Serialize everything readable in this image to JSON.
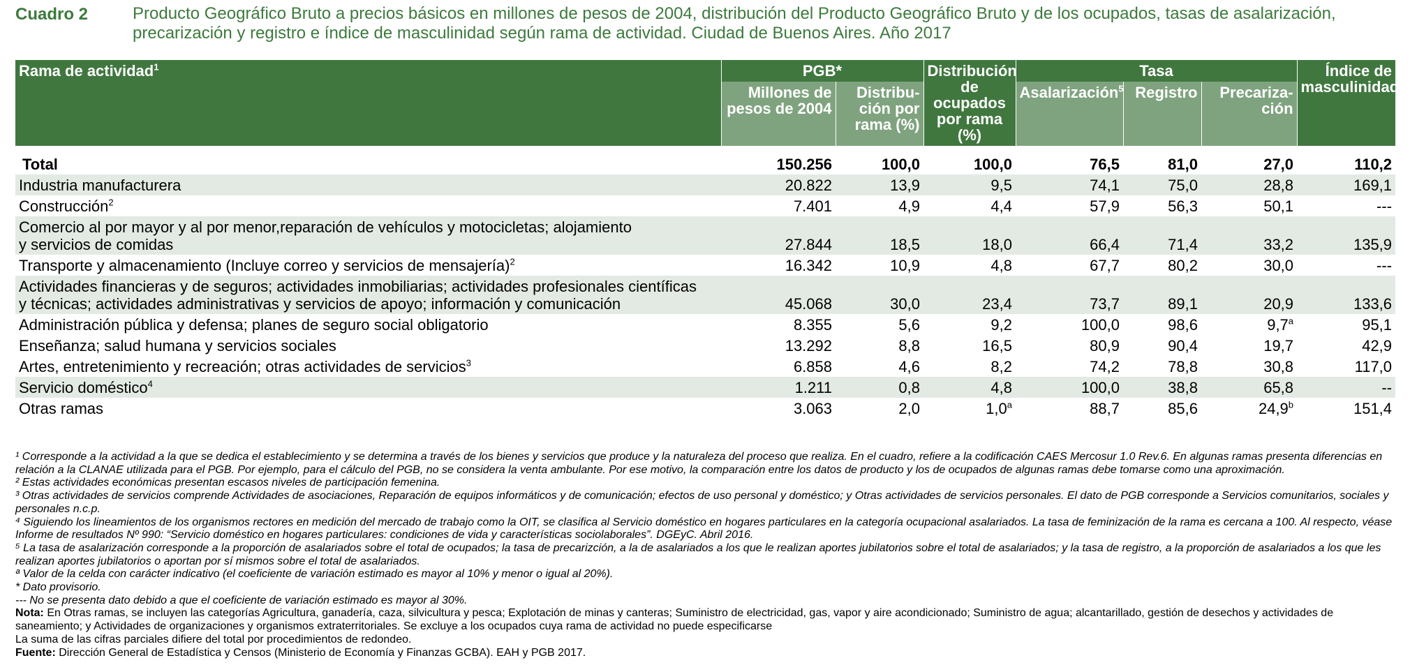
{
  "caption": {
    "label": "Cuadro 2",
    "title": "Producto Geográfico Bruto a precios básicos en millones de pesos de 2004, distribución del Producto Geográfico Bruto y de los ocupados, tasas de asalarización, precarización y registro e índice de masculinidad según rama de actividad. Ciudad de Buenos Aires. Año 2017"
  },
  "header": {
    "rama": "Rama de actividad",
    "rama_sup": "1",
    "pgb": "PGB*",
    "millones": "Millones de pesos de 2004",
    "distribucion": "Distribu-ción por rama (%)",
    "dist_ocupados": "Distribución de ocupados por rama (%)",
    "tasa": "Tasa",
    "asalarizacion": "Asalarización",
    "asalarizacion_sup": "5",
    "registro": "Registro",
    "precarizacion": "Precariza-ción",
    "indice": "Índice de masculinidad"
  },
  "rows": [
    {
      "label": "Total",
      "sup": "",
      "c1": "150.256",
      "c2": "100,0",
      "c3": "100,0",
      "c3s": "",
      "c4": "76,5",
      "c5": "81,0",
      "c6": "27,0",
      "c6s": "",
      "c7": "110,2"
    },
    {
      "label": "Industria manufacturera",
      "sup": "",
      "c1": "20.822",
      "c2": "13,9",
      "c3": "9,5",
      "c3s": "",
      "c4": "74,1",
      "c5": "75,0",
      "c6": "28,8",
      "c6s": "",
      "c7": "169,1"
    },
    {
      "label": "Construcción",
      "sup": "2",
      "c1": "7.401",
      "c2": "4,9",
      "c3": "4,4",
      "c3s": "",
      "c4": "57,9",
      "c5": "56,3",
      "c6": "50,1",
      "c6s": "",
      "c7": "---"
    },
    {
      "label": "Comercio al por mayor y al por menor,reparación de vehículos y motocicletas; alojamiento",
      "label2": "y servicios de comidas",
      "sup": "",
      "c1": "27.844",
      "c2": "18,5",
      "c3": "18,0",
      "c3s": "",
      "c4": "66,4",
      "c5": "71,4",
      "c6": "33,2",
      "c6s": "",
      "c7": "135,9"
    },
    {
      "label": "Transporte y almacenamiento (Incluye correo y servicios de mensajería)",
      "sup": "2",
      "c1": "16.342",
      "c2": "10,9",
      "c3": "4,8",
      "c3s": "",
      "c4": "67,7",
      "c5": "80,2",
      "c6": "30,0",
      "c6s": "",
      "c7": "---"
    },
    {
      "label": "Actividades financieras y de seguros; actividades inmobiliarias; actividades profesionales científicas",
      "label2": "y técnicas; actividades administrativas y servicios de apoyo; información y comunicación",
      "sup": "",
      "c1": "45.068",
      "c2": "30,0",
      "c3": "23,4",
      "c3s": "",
      "c4": "73,7",
      "c5": "89,1",
      "c6": "20,9",
      "c6s": "",
      "c7": "133,6"
    },
    {
      "label": "Administración pública y defensa; planes de seguro social obligatorio",
      "sup": "",
      "c1": "8.355",
      "c2": "5,6",
      "c3": "9,2",
      "c3s": "",
      "c4": "100,0",
      "c5": "98,6",
      "c6": "9,7",
      "c6s": "a",
      "c7": "95,1"
    },
    {
      "label": "Enseñanza; salud humana y servicios sociales",
      "sup": "",
      "c1": "13.292",
      "c2": "8,8",
      "c3": "16,5",
      "c3s": "",
      "c4": "80,9",
      "c5": "90,4",
      "c6": "19,7",
      "c6s": "",
      "c7": "42,9"
    },
    {
      "label": "Artes, entretenimiento y recreación; otras actividades de servicios",
      "sup": "3",
      "c1": "6.858",
      "c2": "4,6",
      "c3": "8,2",
      "c3s": "",
      "c4": "74,2",
      "c5": "78,8",
      "c6": "30,8",
      "c6s": "",
      "c7": "117,0"
    },
    {
      "label": "Servicio doméstico",
      "sup": "4",
      "c1": "1.211",
      "c2": "0,8",
      "c3": "4,8",
      "c3s": "",
      "c4": "100,0",
      "c5": "38,8",
      "c6": "65,8",
      "c6s": "",
      "c7": "--"
    },
    {
      "label": "Otras ramas",
      "sup": "",
      "c1": "3.063",
      "c2": "2,0",
      "c3": "1,0",
      "c3s": "a",
      "c4": "88,7",
      "c5": "85,6",
      "c6": "24,9",
      "c6s": "b",
      "c7": "151,4"
    }
  ],
  "notes": {
    "n1": "¹ Corresponde a la actividad a la que se dedica el establecimiento y se determina a través de los bienes y servicios que produce y la naturaleza del proceso que realiza. En el cuadro, refiere a la codificación CAES Mercosur 1.0 Rev.6. En algunas ramas presenta diferencias en relación a la CLANAE utilizada para el PGB. Por ejemplo, para el cálculo del PGB, no se considera la venta ambulante. Por ese motivo, la comparación entre los datos de producto y los de ocupados de algunas ramas debe tomarse como una aproximación.",
    "n2": "² Estas actividades económicas presentan escasos niveles de participación femenina.",
    "n3": "³ Otras actividades de servicios comprende Actividades de asociaciones, Reparación de equipos informáticos y de comunicación; efectos de uso personal y doméstico; y Otras actividades de servicios personales. El dato de PGB corresponde a  Servicios comunitarios, sociales y personales n.c.p.",
    "n4": "⁴ Siguiendo los lineamientos de los organismos rectores en medición del mercado de trabajo como la OIT, se clasifica al Servicio doméstico en hogares particulares en la categoría ocupacional asalariados. La tasa de feminización de la rama es cercana a 100. Al respecto, véase Informe de resultados Nº 990: “Servicio doméstico en hogares particulares: condiciones de vida y características sociolaborales”. DGEyC. Abril 2016.",
    "n5": "⁵ La tasa de asalarización corresponde a la proporción de asalariados sobre el total de ocupados; la tasa de precarizción, a la de asalariados a los que le realizan aportes jubilatorios sobre el total de asalariados; y  la tasa de registro, a la proporción de asalariados a los que les realizan aportes jubilatorios o aportan por sí mismos sobre el total de asalariados.",
    "na": "ª Valor de la celda con carácter indicativo (el coeficiente de variación estimado es mayor al 10% y menor o igual al 20%).",
    "nstar": "* Dato provisorio.",
    "ndash": "--- No se presenta dato debido a que el coeficiente de variación estimado es mayor al 30%.",
    "nota_label": "Nota:",
    "nota_text": " En Otras ramas, se incluyen las categorías Agricultura, ganadería, caza, silvicultura y pesca; Explotación de minas y canteras; Suministro de electricidad, gas, vapor y aire acondicionado; Suministro de agua; alcantarillado, gestión de desechos y actividades de saneamiento; y Actividades de organizaciones y organismos extraterritoriales. Se excluye a los ocupados cuya rama de actividad no puede especificarse",
    "suma": "La suma de las cifras parciales difiere del total por procedimientos de redondeo.",
    "fuente_label": "Fuente:",
    "fuente_text": " Dirección General de Estadística y Censos (Ministerio de Economía y Finanzas GCBA). EAH y PGB 2017."
  }
}
